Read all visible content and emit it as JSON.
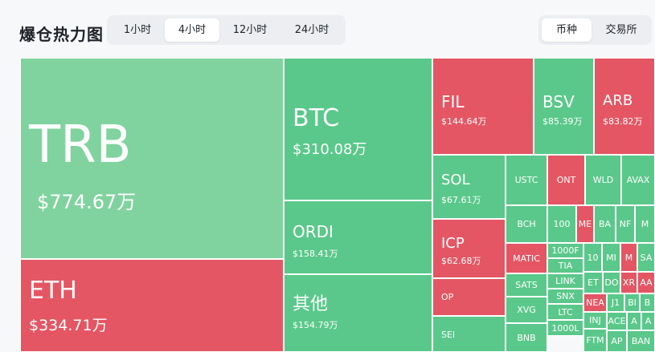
{
  "header": {
    "title": "爆仓热力图"
  },
  "time_tabs": [
    {
      "label": "1小时",
      "active": false
    },
    {
      "label": "4小时",
      "active": true
    },
    {
      "label": "12小时",
      "active": false
    },
    {
      "label": "24小时",
      "active": false
    }
  ],
  "view_tabs": [
    {
      "label": "币种",
      "active": true
    },
    {
      "label": "交易所",
      "active": false
    }
  ],
  "colors": {
    "long": "#5ac88a",
    "long_light": "#80d39f",
    "short": "#e45663"
  },
  "tiles": [
    {
      "symbol": "TRB",
      "value": "$774.67万"
    },
    {
      "symbol": "ETH",
      "value": "$334.71万"
    },
    {
      "symbol": "BTC",
      "value": "$310.08万"
    },
    {
      "symbol": "ORDI",
      "value": "$158.41万"
    },
    {
      "symbol": "其他",
      "value": "$154.79万"
    },
    {
      "symbol": "FIL",
      "value": "$144.64万"
    },
    {
      "symbol": "BSV",
      "value": "$85.39万"
    },
    {
      "symbol": "ARB",
      "value": "$83.82万"
    },
    {
      "symbol": "SOL",
      "value": "$67.61万"
    },
    {
      "symbol": "ICP",
      "value": "$62.68万"
    },
    {
      "symbol": "OP",
      "value": ""
    },
    {
      "symbol": "SEI",
      "value": ""
    },
    {
      "symbol": "USTC",
      "value": ""
    },
    {
      "symbol": "ONT",
      "value": ""
    },
    {
      "symbol": "WLD",
      "value": ""
    },
    {
      "symbol": "AVAX",
      "value": ""
    },
    {
      "symbol": "BCH",
      "value": ""
    },
    {
      "symbol": "100",
      "value": ""
    },
    {
      "symbol": "ME",
      "value": ""
    },
    {
      "symbol": "BA",
      "value": ""
    },
    {
      "symbol": "NF",
      "value": ""
    },
    {
      "symbol": "M",
      "value": ""
    },
    {
      "symbol": "MATIC",
      "value": ""
    },
    {
      "symbol": "1000F",
      "value": ""
    },
    {
      "symbol": "TIA",
      "value": ""
    },
    {
      "symbol": "LINK",
      "value": ""
    },
    {
      "symbol": "SNX",
      "value": ""
    },
    {
      "symbol": "LTC",
      "value": ""
    },
    {
      "symbol": "1000L",
      "value": ""
    },
    {
      "symbol": "SATS",
      "value": ""
    },
    {
      "symbol": "XVG",
      "value": ""
    },
    {
      "symbol": "BNB",
      "value": ""
    },
    {
      "symbol": "10",
      "value": ""
    },
    {
      "symbol": "MI",
      "value": ""
    },
    {
      "symbol": "M",
      "value": ""
    },
    {
      "symbol": "SA",
      "value": ""
    },
    {
      "symbol": "ET",
      "value": ""
    },
    {
      "symbol": "DO",
      "value": ""
    },
    {
      "symbol": "XR",
      "value": ""
    },
    {
      "symbol": "AA",
      "value": ""
    },
    {
      "symbol": "NEA",
      "value": ""
    },
    {
      "symbol": "J1",
      "value": ""
    },
    {
      "symbol": "BI",
      "value": ""
    },
    {
      "symbol": "B",
      "value": ""
    },
    {
      "symbol": "INJ",
      "value": ""
    },
    {
      "symbol": "ACE",
      "value": ""
    },
    {
      "symbol": "A",
      "value": ""
    },
    {
      "symbol": "A",
      "value": ""
    },
    {
      "symbol": "FTM",
      "value": ""
    },
    {
      "symbol": "AP",
      "value": ""
    },
    {
      "symbol": "BAN",
      "value": ""
    }
  ]
}
